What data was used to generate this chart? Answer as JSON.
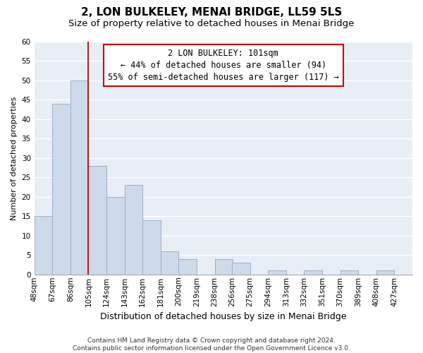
{
  "title": "2, LON BULKELEY, MENAI BRIDGE, LL59 5LS",
  "subtitle": "Size of property relative to detached houses in Menai Bridge",
  "xlabel": "Distribution of detached houses by size in Menai Bridge",
  "ylabel": "Number of detached properties",
  "bar_color": "#cddaea",
  "bar_edge_color": "#9ab0c8",
  "background_color": "#e8eef5",
  "grid_color": "#ffffff",
  "bins": [
    48,
    67,
    86,
    105,
    124,
    143,
    162,
    181,
    200,
    219,
    238,
    256,
    275,
    294,
    313,
    332,
    351,
    370,
    389,
    408,
    427
  ],
  "bin_labels": [
    "48sqm",
    "67sqm",
    "86sqm",
    "105sqm",
    "124sqm",
    "143sqm",
    "162sqm",
    "181sqm",
    "200sqm",
    "219sqm",
    "238sqm",
    "256sqm",
    "275sqm",
    "294sqm",
    "313sqm",
    "332sqm",
    "351sqm",
    "370sqm",
    "389sqm",
    "408sqm",
    "427sqm"
  ],
  "counts": [
    15,
    44,
    50,
    28,
    20,
    23,
    14,
    6,
    4,
    0,
    4,
    3,
    0,
    1,
    0,
    1,
    0,
    1,
    0,
    1
  ],
  "vline_x": 105,
  "vline_color": "#cc0000",
  "annotation_line1": "2 LON BULKELEY: 101sqm",
  "annotation_line2": "← 44% of detached houses are smaller (94)",
  "annotation_line3": "55% of semi-detached houses are larger (117) →",
  "annotation_box_color": "#ffffff",
  "annotation_box_edge": "#cc0000",
  "ylim": [
    0,
    60
  ],
  "yticks": [
    0,
    5,
    10,
    15,
    20,
    25,
    30,
    35,
    40,
    45,
    50,
    55,
    60
  ],
  "footnote": "Contains HM Land Registry data © Crown copyright and database right 2024.\nContains public sector information licensed under the Open Government Licence v3.0.",
  "title_fontsize": 11,
  "subtitle_fontsize": 9.5,
  "xlabel_fontsize": 9,
  "ylabel_fontsize": 8,
  "tick_fontsize": 7.5,
  "annotation_fontsize": 8.5,
  "footnote_fontsize": 6.5
}
